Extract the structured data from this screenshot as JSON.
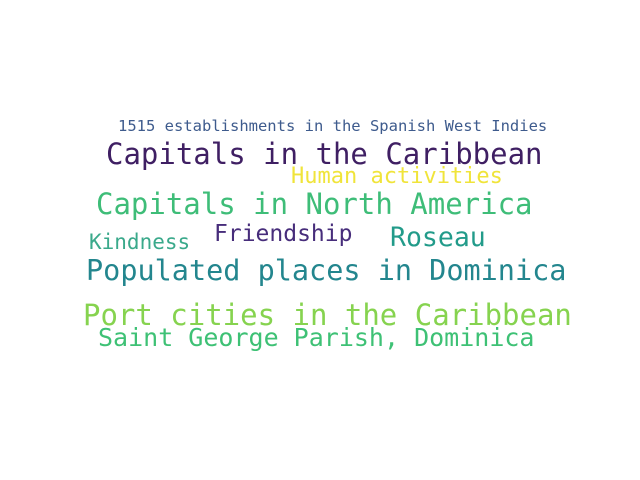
{
  "word_cloud": {
    "words": [
      {
        "text": "1515 establishments in the Spanish West Indies",
        "color": "#3e5b8d"
      },
      {
        "text": "Capitals in the Caribbean",
        "color": "#3f1f63"
      },
      {
        "text": "Human activities",
        "color": "#f0e43a"
      },
      {
        "text": "Capitals in North America",
        "color": "#3ebd78"
      },
      {
        "text": "Kindness",
        "color": "#3aa98b"
      },
      {
        "text": "Friendship",
        "color": "#472d7b"
      },
      {
        "text": "Roseau",
        "color": "#229b8a"
      },
      {
        "text": "Populated places in Dominica",
        "color": "#23868e"
      },
      {
        "text": "Port cities in the Caribbean",
        "color": "#86d34f"
      },
      {
        "text": "Saint George Parish, Dominica",
        "color": "#3ec175"
      }
    ]
  }
}
